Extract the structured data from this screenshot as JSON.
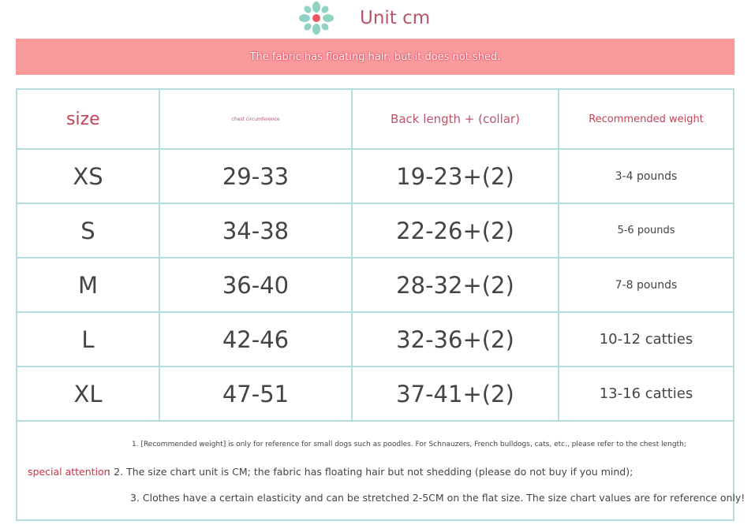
{
  "header": {
    "title": "Unit cm",
    "banner": "The fabric has floating hair, but it does not shed."
  },
  "colors": {
    "title": "#b9546a",
    "banner": "#f99a9c",
    "grid": "#b4dcdc",
    "accent": "#cc3344"
  },
  "table": {
    "columns": [
      "size",
      "chest circumference",
      "Back length + (collar)",
      "Recommended weight"
    ],
    "rows": [
      [
        "XS",
        "29-33",
        "19-23+(2)",
        "3-4 pounds"
      ],
      [
        "S",
        "34-38",
        "22-26+(2)",
        "5-6 pounds"
      ],
      [
        "M",
        "36-40",
        "28-32+(2)",
        "7-8 pounds"
      ],
      [
        "L",
        "42-46",
        "32-36+(2)",
        "10-12 catties"
      ],
      [
        "XL",
        "47-51",
        "37-41+(2)",
        "13-16 catties"
      ]
    ]
  },
  "notes": {
    "label": "special attention",
    "n1": "1. [Recommended weight] is only for reference for small dogs such as poodles. For Schnauzers, French bulldogs, cats, etc., please refer to the chest length;",
    "n2": ": 2. The size chart unit is CM; the fabric has floating hair but not shedding (please do not buy if you mind);",
    "n3": "3. Clothes have a certain elasticity and can be stretched 2-5CM on the flat size. The size chart values are for reference only!"
  }
}
